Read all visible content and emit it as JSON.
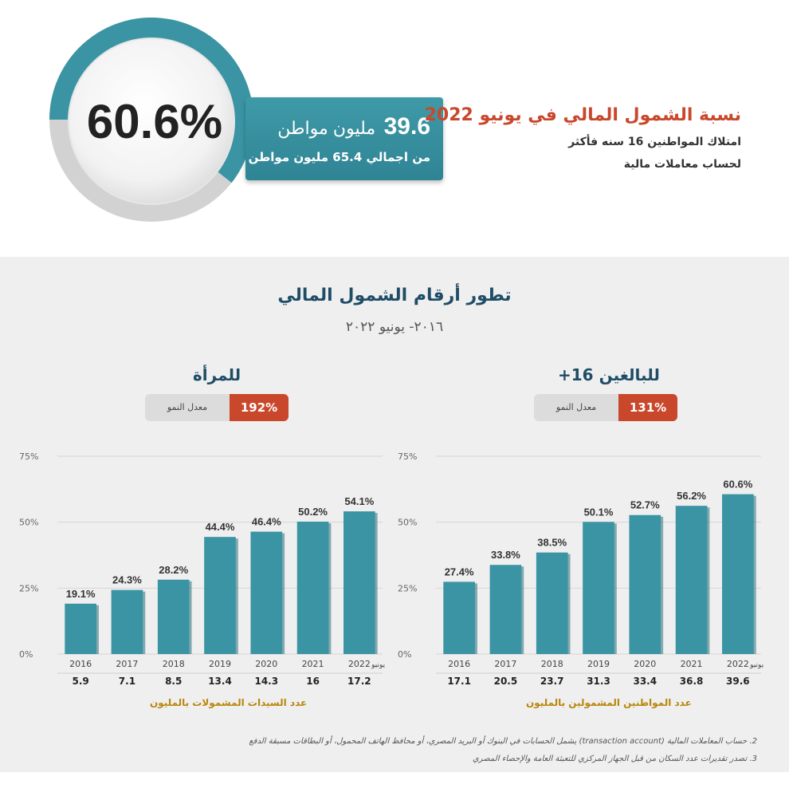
{
  "hero": {
    "percent": "60.6%",
    "citizens_number": "39.6",
    "citizens_unit": "مليون مواطن",
    "total_text": "من اجمالي 65.4 مليون مواطن",
    "title": "نسبة الشمول المالي في يونيو 2022",
    "subtitle_line1": "امتلاك المواطنين 16 سنه فأكثر",
    "subtitle_line2": "لحساب معاملات مالية",
    "ring_value": 60.6,
    "colors": {
      "teal": "#3a94a3",
      "grey": "#cfcfcf",
      "accent": "#c9472b"
    }
  },
  "panel": {
    "title": "تطور أرقام الشمول المالي",
    "subtitle": "٢٠١٦- يونيو ٢٠٢٢",
    "notes": [
      "2. حساب المعاملات المالية (transaction account) يشمل الحسابات في البنوك أو البريد المصري، أو محافظ الهاتف المحمول، أو البطاقات مسبقة الدفع",
      "3. تصدر تقديرات عدد السكان من قبل الجهاز المركزي للتعبئة العامة والإحصاء المصري"
    ]
  },
  "chart_data": [
    {
      "type": "bar",
      "heading": "للبالغين 16+",
      "growth_label": "معدل النمو",
      "growth_value": "131%",
      "categories": [
        "2016",
        "2017",
        "2018",
        "2019",
        "2020",
        "2021",
        "2022"
      ],
      "last_category_note": "يونيو",
      "values": [
        27.4,
        33.8,
        38.5,
        50.1,
        52.7,
        56.2,
        60.6
      ],
      "value_labels": [
        "27.4%",
        "33.8%",
        "38.5%",
        "50.1%",
        "52.7%",
        "56.2%",
        "60.6%"
      ],
      "counts": [
        "17.1",
        "20.5",
        "23.7",
        "31.3",
        "33.4",
        "36.8",
        "39.6"
      ],
      "counts_caption": "عدد المواطنين المشمولين بالمليون",
      "yticks": [
        "0%",
        "25%",
        "50%",
        "75%"
      ],
      "ylim": [
        0,
        75
      ],
      "bar_color": "#3a94a3"
    },
    {
      "type": "bar",
      "heading": "للمرأة",
      "growth_label": "معدل النمو",
      "growth_value": "192%",
      "categories": [
        "2016",
        "2017",
        "2018",
        "2019",
        "2020",
        "2021",
        "2022"
      ],
      "last_category_note": "يونيو",
      "values": [
        19.1,
        24.3,
        28.2,
        44.4,
        46.4,
        50.2,
        54.1
      ],
      "value_labels": [
        "19.1%",
        "24.3%",
        "28.2%",
        "44.4%",
        "46.4%",
        "50.2%",
        "54.1%"
      ],
      "counts": [
        "5.9",
        "7.1",
        "8.5",
        "13.4",
        "14.3",
        "16",
        "17.2"
      ],
      "counts_caption": "عدد السيدات المشمولات بالمليون",
      "yticks": [
        "0%",
        "25%",
        "50%",
        "75%"
      ],
      "ylim": [
        0,
        75
      ],
      "bar_color": "#3a94a3"
    }
  ]
}
